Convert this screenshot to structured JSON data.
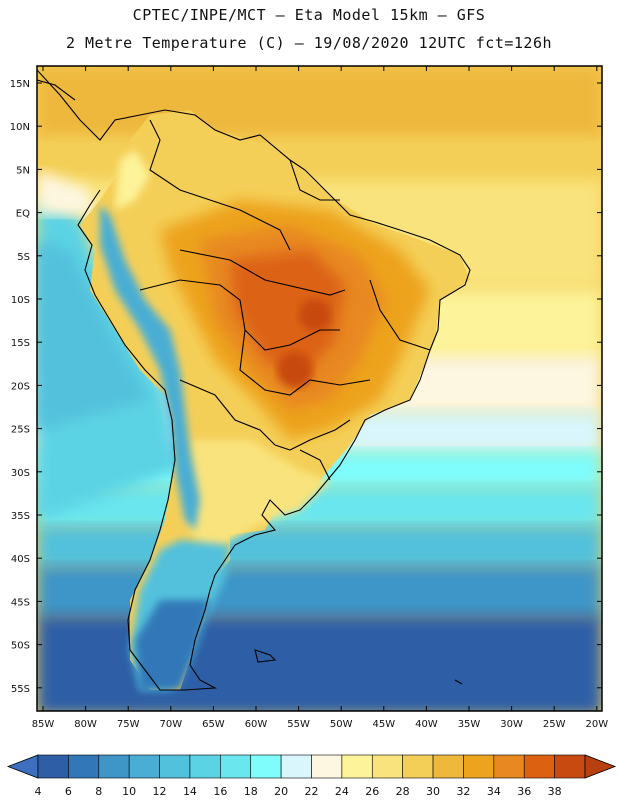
{
  "header": {
    "line1": "CPTEC/INPE/MCT –  Eta Model 15km – GFS",
    "line2": "2 Metre Temperature (C) – 19/08/2020 12UTC fct=126h"
  },
  "map": {
    "lat_labels": [
      "15N",
      "10N",
      "5N",
      "EQ",
      "5S",
      "10S",
      "15S",
      "20S",
      "25S",
      "30S",
      "35S",
      "40S",
      "45S",
      "50S",
      "55S"
    ],
    "lon_labels": [
      "85W",
      "80W",
      "75W",
      "70W",
      "65W",
      "60W",
      "55W",
      "50W",
      "45W",
      "40W",
      "35W",
      "30W",
      "25W",
      "20W"
    ]
  },
  "colorbar": {
    "labels": [
      "4",
      "6",
      "8",
      "10",
      "12",
      "14",
      "16",
      "18",
      "20",
      "22",
      "24",
      "26",
      "28",
      "30",
      "32",
      "34",
      "36",
      "38"
    ],
    "colors": [
      "#2e5fa6",
      "#3278b8",
      "#3d95c8",
      "#4aaed4",
      "#52c1dc",
      "#5cd3e4",
      "#6ae6ee",
      "#7ffcfc",
      "#d8f6fb",
      "#fdf6e0",
      "#fdf39a",
      "#f9e37c",
      "#f4cf58",
      "#eeb83c",
      "#eda31d",
      "#e88820",
      "#dc6212",
      "#c84a10"
    ],
    "low_color": "#3d6fbe",
    "high_color": "#b84010"
  }
}
